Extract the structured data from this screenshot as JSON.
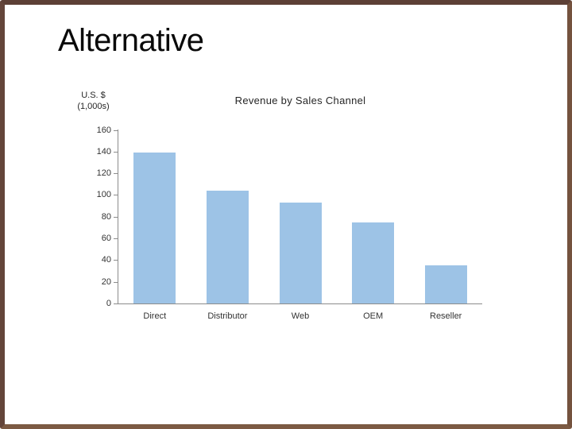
{
  "slide": {
    "title": "Alternative"
  },
  "chart_data": {
    "type": "bar",
    "title": "Revenue by Sales Channel",
    "unit_label_lines": [
      "U.S. $",
      "(1,000s)"
    ],
    "categories": [
      "Direct",
      "Distributor",
      "Web",
      "OEM",
      "Reseller"
    ],
    "values": [
      139,
      104,
      93,
      75,
      35
    ],
    "xlabel": "",
    "ylabel": "U.S. $ (1,000s)",
    "ylim": [
      0,
      160
    ],
    "yticks": [
      0,
      20,
      40,
      60,
      80,
      100,
      120,
      140,
      160
    ],
    "grid": "off",
    "legend": "none",
    "bar_color": "#9dc3e6",
    "axis_color": "#8c8c8c",
    "tick_text_color": "#333333",
    "title_color": "#262626",
    "frame_color": "#6b4a3c",
    "background_color": "#ffffff"
  }
}
